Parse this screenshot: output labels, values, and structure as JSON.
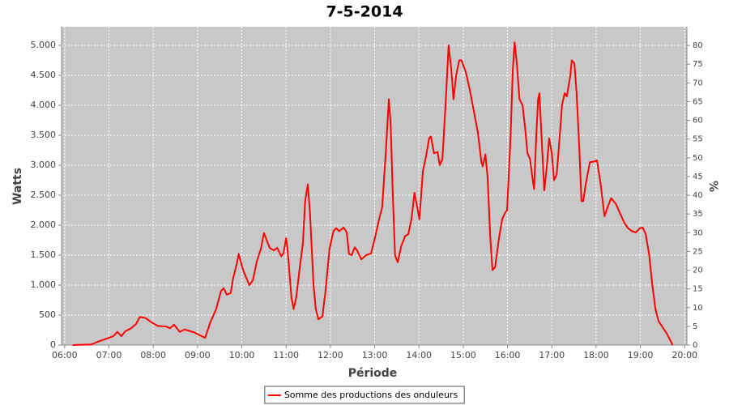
{
  "chart_data": {
    "type": "line",
    "title": "7-5-2014",
    "x_label": "Période",
    "y_label": "Watts",
    "y2_label": "%",
    "x": [
      6.18,
      6.6,
      6.73,
      6.92,
      7.0,
      7.1,
      7.19,
      7.28,
      7.37,
      7.5,
      7.61,
      7.7,
      7.83,
      7.96,
      8.1,
      8.29,
      8.38,
      8.47,
      8.6,
      8.71,
      8.93,
      9.06,
      9.17,
      9.29,
      9.42,
      9.53,
      9.59,
      9.66,
      9.75,
      9.8,
      9.9,
      9.93,
      10.03,
      10.17,
      10.25,
      10.34,
      10.43,
      10.5,
      10.63,
      10.72,
      10.8,
      10.89,
      10.94,
      11.0,
      11.03,
      11.12,
      11.17,
      11.23,
      11.31,
      11.38,
      11.43,
      11.49,
      11.54,
      11.62,
      11.67,
      11.73,
      11.82,
      11.89,
      11.98,
      12.07,
      12.13,
      12.2,
      12.3,
      12.37,
      12.42,
      12.48,
      12.55,
      12.6,
      12.7,
      12.81,
      12.92,
      13.01,
      13.1,
      13.17,
      13.25,
      13.32,
      13.36,
      13.41,
      13.46,
      13.52,
      13.6,
      13.69,
      13.76,
      13.83,
      13.9,
      13.96,
      14.01,
      14.09,
      14.16,
      14.23,
      14.27,
      14.34,
      14.42,
      14.47,
      14.53,
      14.6,
      14.67,
      14.73,
      14.78,
      14.84,
      14.91,
      14.96,
      15.06,
      15.15,
      15.24,
      15.33,
      15.41,
      15.44,
      15.5,
      15.55,
      15.61,
      15.66,
      15.72,
      15.81,
      15.88,
      15.94,
      15.99,
      16.07,
      16.12,
      16.16,
      16.21,
      16.27,
      16.34,
      16.4,
      16.45,
      16.51,
      16.56,
      16.6,
      16.65,
      16.69,
      16.72,
      16.78,
      16.83,
      16.89,
      16.94,
      17.0,
      17.05,
      17.11,
      17.16,
      17.23,
      17.29,
      17.34,
      17.42,
      17.45,
      17.51,
      17.56,
      17.62,
      17.67,
      17.71,
      17.77,
      17.86,
      17.95,
      18.02,
      18.1,
      18.19,
      18.26,
      18.34,
      18.45,
      18.54,
      18.63,
      18.72,
      18.81,
      18.9,
      18.99,
      19.05,
      19.12,
      19.2,
      19.27,
      19.34,
      19.41,
      19.5,
      19.59,
      19.66,
      19.73
    ],
    "series": [
      {
        "name": "Somme des productions des onduleurs",
        "color": "#ff0000",
        "values": [
          0,
          10,
          50,
          100,
          120,
          150,
          220,
          150,
          230,
          280,
          350,
          470,
          450,
          380,
          320,
          310,
          280,
          340,
          220,
          260,
          210,
          160,
          120,
          380,
          600,
          900,
          950,
          840,
          870,
          1100,
          1400,
          1520,
          1250,
          1000,
          1080,
          1400,
          1600,
          1870,
          1620,
          1580,
          1620,
          1480,
          1530,
          1780,
          1620,
          800,
          600,
          800,
          1300,
          1700,
          2400,
          2680,
          2200,
          1000,
          600,
          430,
          480,
          900,
          1600,
          1900,
          1950,
          1900,
          1960,
          1880,
          1520,
          1500,
          1630,
          1580,
          1430,
          1500,
          1530,
          1800,
          2100,
          2300,
          3200,
          4100,
          3700,
          2500,
          1500,
          1380,
          1650,
          1820,
          1850,
          2100,
          2540,
          2300,
          2100,
          2900,
          3150,
          3450,
          3480,
          3200,
          3220,
          3000,
          3100,
          4000,
          5000,
          4600,
          4100,
          4500,
          4750,
          4750,
          4550,
          4250,
          3900,
          3550,
          3050,
          2980,
          3180,
          2800,
          1800,
          1250,
          1300,
          1800,
          2100,
          2200,
          2250,
          3500,
          4600,
          5050,
          4700,
          4100,
          4000,
          3600,
          3200,
          3100,
          2800,
          2600,
          3500,
          4100,
          4200,
          3300,
          2580,
          3000,
          3450,
          3200,
          2750,
          2850,
          3300,
          4000,
          4200,
          4150,
          4500,
          4750,
          4700,
          4200,
          3300,
          2400,
          2400,
          2700,
          3050,
          3060,
          3080,
          2700,
          2150,
          2300,
          2450,
          2350,
          2200,
          2050,
          1950,
          1900,
          1880,
          1950,
          1960,
          1850,
          1500,
          1000,
          600,
          400,
          300,
          200,
          100,
          0
        ]
      }
    ],
    "xlim": [
      5.93,
      20.05
    ],
    "xticks": [
      {
        "value": 6,
        "label": "06:00"
      },
      {
        "value": 7,
        "label": "07:00"
      },
      {
        "value": 8,
        "label": "08:00"
      },
      {
        "value": 9,
        "label": "09:00"
      },
      {
        "value": 10,
        "label": "10:00"
      },
      {
        "value": 11,
        "label": "11:00"
      },
      {
        "value": 12,
        "label": "12:00"
      },
      {
        "value": 13,
        "label": "13:00"
      },
      {
        "value": 14,
        "label": "14:00"
      },
      {
        "value": 15,
        "label": "15:00"
      },
      {
        "value": 16,
        "label": "16:00"
      },
      {
        "value": 17,
        "label": "17:00"
      },
      {
        "value": 18,
        "label": "18:00"
      },
      {
        "value": 19,
        "label": "19:00"
      },
      {
        "value": 20,
        "label": "20:00"
      }
    ],
    "ylim": [
      0,
      5310
    ],
    "yticks": [
      0,
      500,
      {
        "value": 1000,
        "label": "1.000"
      },
      {
        "value": 1500,
        "label": "1.500"
      },
      {
        "value": 2000,
        "label": "2.000"
      },
      {
        "value": 2500,
        "label": "2.500"
      },
      {
        "value": 3000,
        "label": "3.000"
      },
      {
        "value": 3500,
        "label": "3.500"
      },
      {
        "value": 4000,
        "label": "4.000"
      },
      {
        "value": 4500,
        "label": "4.500"
      },
      {
        "value": 5000,
        "label": "5.000"
      }
    ],
    "y2lim": [
      0,
      85
    ],
    "y2ticks": [
      0,
      5,
      10,
      15,
      20,
      25,
      30,
      35,
      40,
      45,
      50,
      55,
      60,
      65,
      70,
      75,
      80
    ],
    "grid": true,
    "legend": "bottom"
  }
}
